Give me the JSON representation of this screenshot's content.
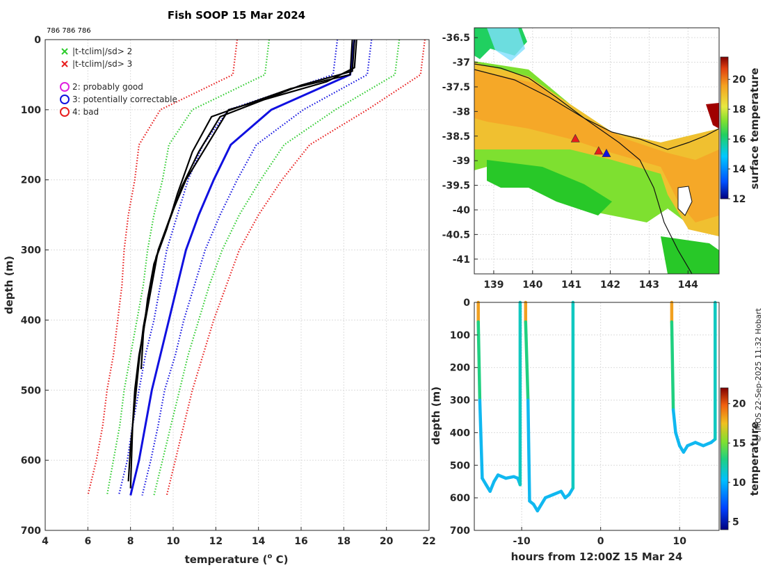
{
  "chart_data": [
    {
      "type": "line",
      "id": "profile",
      "title": "Fish SOOP 15 Mar 2024",
      "header_ids": "786 786 786",
      "xlabel": "temperature (o C)",
      "xlabel_text": "temperature (",
      "xlabel_sup": "o",
      "xlabel_end": " C)",
      "ylabel": "depth (m)",
      "xlim": [
        4,
        22
      ],
      "ylim": [
        700,
        0
      ],
      "xticks": [
        "4",
        "6",
        "8",
        "10",
        "12",
        "14",
        "16",
        "18",
        "20",
        "22"
      ],
      "yticks": [
        "0",
        "100",
        "200",
        "300",
        "400",
        "500",
        "600",
        "700"
      ],
      "legend": [
        {
          "marker": "x",
          "color": "#2ecc2e",
          "label": "|t-tclim|/sd> 2"
        },
        {
          "marker": "x",
          "color": "#e81c1c",
          "label": "|t-tclim|/sd> 3"
        },
        {
          "marker": "o",
          "color": "#e020e0",
          "label": "2: probably good"
        },
        {
          "marker": "o",
          "color": "#1010e0",
          "label": "3: potentially correctable"
        },
        {
          "marker": "o",
          "color": "#e81c1c",
          "label": "4: bad"
        }
      ],
      "climatology": {
        "depths": [
          0,
          50,
          100,
          150,
          200,
          250,
          300,
          350,
          400,
          450,
          500,
          550,
          600,
          650
        ],
        "mean": [
          18.5,
          18.3,
          14.6,
          12.7,
          11.9,
          11.2,
          10.6,
          10.2,
          9.8,
          9.4,
          9.0,
          8.7,
          8.4,
          8.0
        ],
        "series": [
          {
            "name": "clim +3sd",
            "color": "#e81c1c",
            "offset": [
              3.3,
              3.3,
              4.5,
              3.7,
              3.2,
              2.8,
              2.5,
              2.3,
              2.1,
              2.0,
              1.9,
              1.8,
              1.7,
              1.7
            ]
          },
          {
            "name": "clim +2sd",
            "color": "#2ecc2e",
            "offset": [
              2.1,
              2.1,
              3.0,
              2.5,
              2.2,
              1.9,
              1.7,
              1.5,
              1.4,
              1.3,
              1.3,
              1.2,
              1.1,
              1.1
            ]
          },
          {
            "name": "clim +1sd",
            "color": "#1010e0",
            "offset": [
              0.8,
              0.8,
              1.5,
              1.2,
              1.1,
              1.0,
              0.9,
              0.8,
              0.7,
              0.7,
              0.6,
              0.6,
              0.55,
              0.55
            ]
          },
          {
            "name": "clim -1sd",
            "color": "#1010e0",
            "offset": [
              -0.8,
              -0.8,
              -2.0,
              -1.3,
              -1.2,
              -1.0,
              -0.9,
              -0.8,
              -0.7,
              -0.7,
              -0.6,
              -0.6,
              -0.55,
              -0.55
            ]
          },
          {
            "name": "clim -2sd",
            "color": "#2ecc2e",
            "offset": [
              -4.0,
              -4.0,
              -3.7,
              -2.9,
              -2.4,
              -2.1,
              -1.8,
              -1.6,
              -1.5,
              -1.4,
              -1.3,
              -1.2,
              -1.2,
              -1.1
            ]
          },
          {
            "name": "clim -3sd",
            "color": "#e81c1c",
            "offset": [
              -5.5,
              -5.5,
              -5.2,
              -4.3,
              -3.7,
              -3.3,
              -2.9,
              -2.6,
              -2.4,
              -2.2,
              -2.1,
              -2.0,
              -2.0,
              -2.0
            ]
          }
        ]
      },
      "observed": [
        {
          "name": "profile 1",
          "t": [
            18.6,
            18.5,
            17.2,
            12.6,
            11.6,
            10.6,
            9.9,
            9.3,
            9.0,
            8.7,
            8.4,
            8.2,
            8.1,
            8.0
          ],
          "depths": [
            0,
            40,
            60,
            100,
            150,
            200,
            250,
            300,
            350,
            400,
            450,
            500,
            550,
            640
          ]
        },
        {
          "name": "profile 2",
          "t": [
            18.5,
            18.4,
            16.0,
            12.2,
            11.2,
            10.4,
            9.8,
            9.2,
            8.9,
            8.6,
            8.4,
            8.2,
            8.0,
            7.9
          ],
          "depths": [
            0,
            45,
            65,
            110,
            160,
            210,
            260,
            310,
            360,
            410,
            460,
            520,
            580,
            630
          ]
        },
        {
          "name": "profile 3",
          "t": [
            18.4,
            18.3,
            15.5,
            11.8,
            10.9,
            10.2,
            9.7,
            9.1,
            8.8,
            8.6,
            8.5
          ],
          "depths": [
            0,
            50,
            70,
            110,
            160,
            220,
            270,
            320,
            370,
            420,
            470
          ]
        }
      ]
    },
    {
      "type": "map",
      "id": "sst-map",
      "xticks": [
        "139",
        "140",
        "141",
        "142",
        "143",
        "144"
      ],
      "yticks": [
        "-36.5",
        "-37",
        "-37.5",
        "-38",
        "-38.5",
        "-39",
        "-39.5",
        "-40",
        "-40.5",
        "-41"
      ],
      "xlim": [
        138.5,
        144.8
      ],
      "ylim": [
        -41.3,
        -36.3
      ],
      "colorbar": {
        "label": "surface temperature",
        "min": 12,
        "max": 21.5,
        "ticks": [
          "12",
          "14",
          "16",
          "18",
          "20"
        ]
      },
      "markers": [
        {
          "lon": 141.1,
          "lat": -38.55,
          "color": "#e81c1c"
        },
        {
          "lon": 141.7,
          "lat": -38.8,
          "color": "#e81c1c"
        },
        {
          "lon": 141.9,
          "lat": -38.85,
          "color": "#1010e0"
        }
      ]
    },
    {
      "type": "line",
      "id": "depth-time",
      "xlabel": "hours from 12:00Z 15 Mar 24",
      "ylabel": "depth (m)",
      "xlim": [
        -16,
        15
      ],
      "ylim": [
        700,
        0
      ],
      "xticks": [
        "-10",
        "0",
        "10"
      ],
      "yticks": [
        "0",
        "100",
        "200",
        "300",
        "400",
        "500",
        "600",
        "700"
      ],
      "colorbar": {
        "label": "temperature",
        "min": 4,
        "max": 22,
        "ticks": [
          "5",
          "10",
          "15",
          "20"
        ]
      },
      "series": [
        {
          "name": "tow 1",
          "x": [
            -15.5,
            -15.5,
            -15.3,
            -15,
            -14.5,
            -14,
            -13.5,
            -13,
            -12,
            -11,
            -10.5,
            -10.2,
            -10.2
          ],
          "depth": [
            0,
            60,
            300,
            540,
            560,
            580,
            550,
            530,
            540,
            535,
            540,
            560,
            0
          ]
        },
        {
          "name": "tow 2",
          "x": [
            -9.5,
            -9.5,
            -9.2,
            -9,
            -8.5,
            -8,
            -7,
            -6,
            -5,
            -4.5,
            -4,
            -3.5,
            -3.5
          ],
          "depth": [
            0,
            60,
            300,
            610,
            620,
            640,
            600,
            590,
            580,
            600,
            590,
            570,
            0
          ]
        },
        {
          "name": "tow 3",
          "x": [
            9,
            9,
            9.2,
            9.5,
            10,
            10.5,
            11,
            12,
            13,
            14,
            14.5,
            14.5
          ],
          "depth": [
            0,
            60,
            330,
            400,
            440,
            460,
            440,
            430,
            440,
            430,
            420,
            0
          ]
        }
      ]
    }
  ],
  "credit": "© IMOS 22-Sep-2025 11:32 Hobart"
}
